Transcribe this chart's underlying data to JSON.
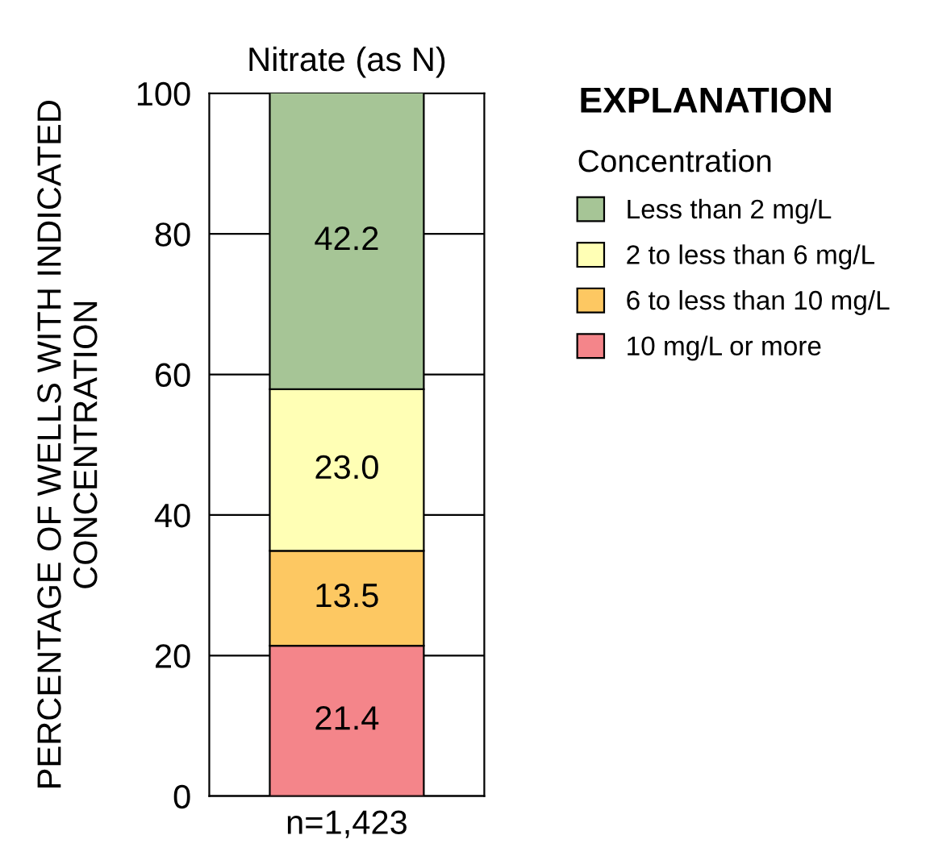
{
  "chart_data": {
    "type": "bar",
    "stacked": true,
    "title": "Nitrate (as N)",
    "ylabel": "PERCENTAGE OF WELLS WITH INDICATED\nCONCENTRATION",
    "categories": [
      "n=1,423"
    ],
    "series": [
      {
        "name": "10 mg/L or more",
        "color": "#f4858a",
        "values": [
          21.4
        ],
        "value_labels": [
          "21.4"
        ]
      },
      {
        "name": "6 to less than 10 mg/L",
        "color": "#fdc862",
        "values": [
          13.5
        ],
        "value_labels": [
          "13.5"
        ]
      },
      {
        "name": "2 to less than 6 mg/L",
        "color": "#ffffb5",
        "values": [
          23.0
        ],
        "value_labels": [
          "23.0"
        ]
      },
      {
        "name": "Less than 2 mg/L",
        "color": "#a6c596",
        "values": [
          42.2
        ],
        "value_labels": [
          "42.2"
        ]
      }
    ],
    "ylim": [
      0,
      100
    ],
    "yticks": [
      0,
      20,
      40,
      60,
      80,
      100
    ],
    "grid": "y",
    "legend": "right",
    "legend_title": "Concentration",
    "annotations": [
      "EXPLANATION"
    ]
  }
}
